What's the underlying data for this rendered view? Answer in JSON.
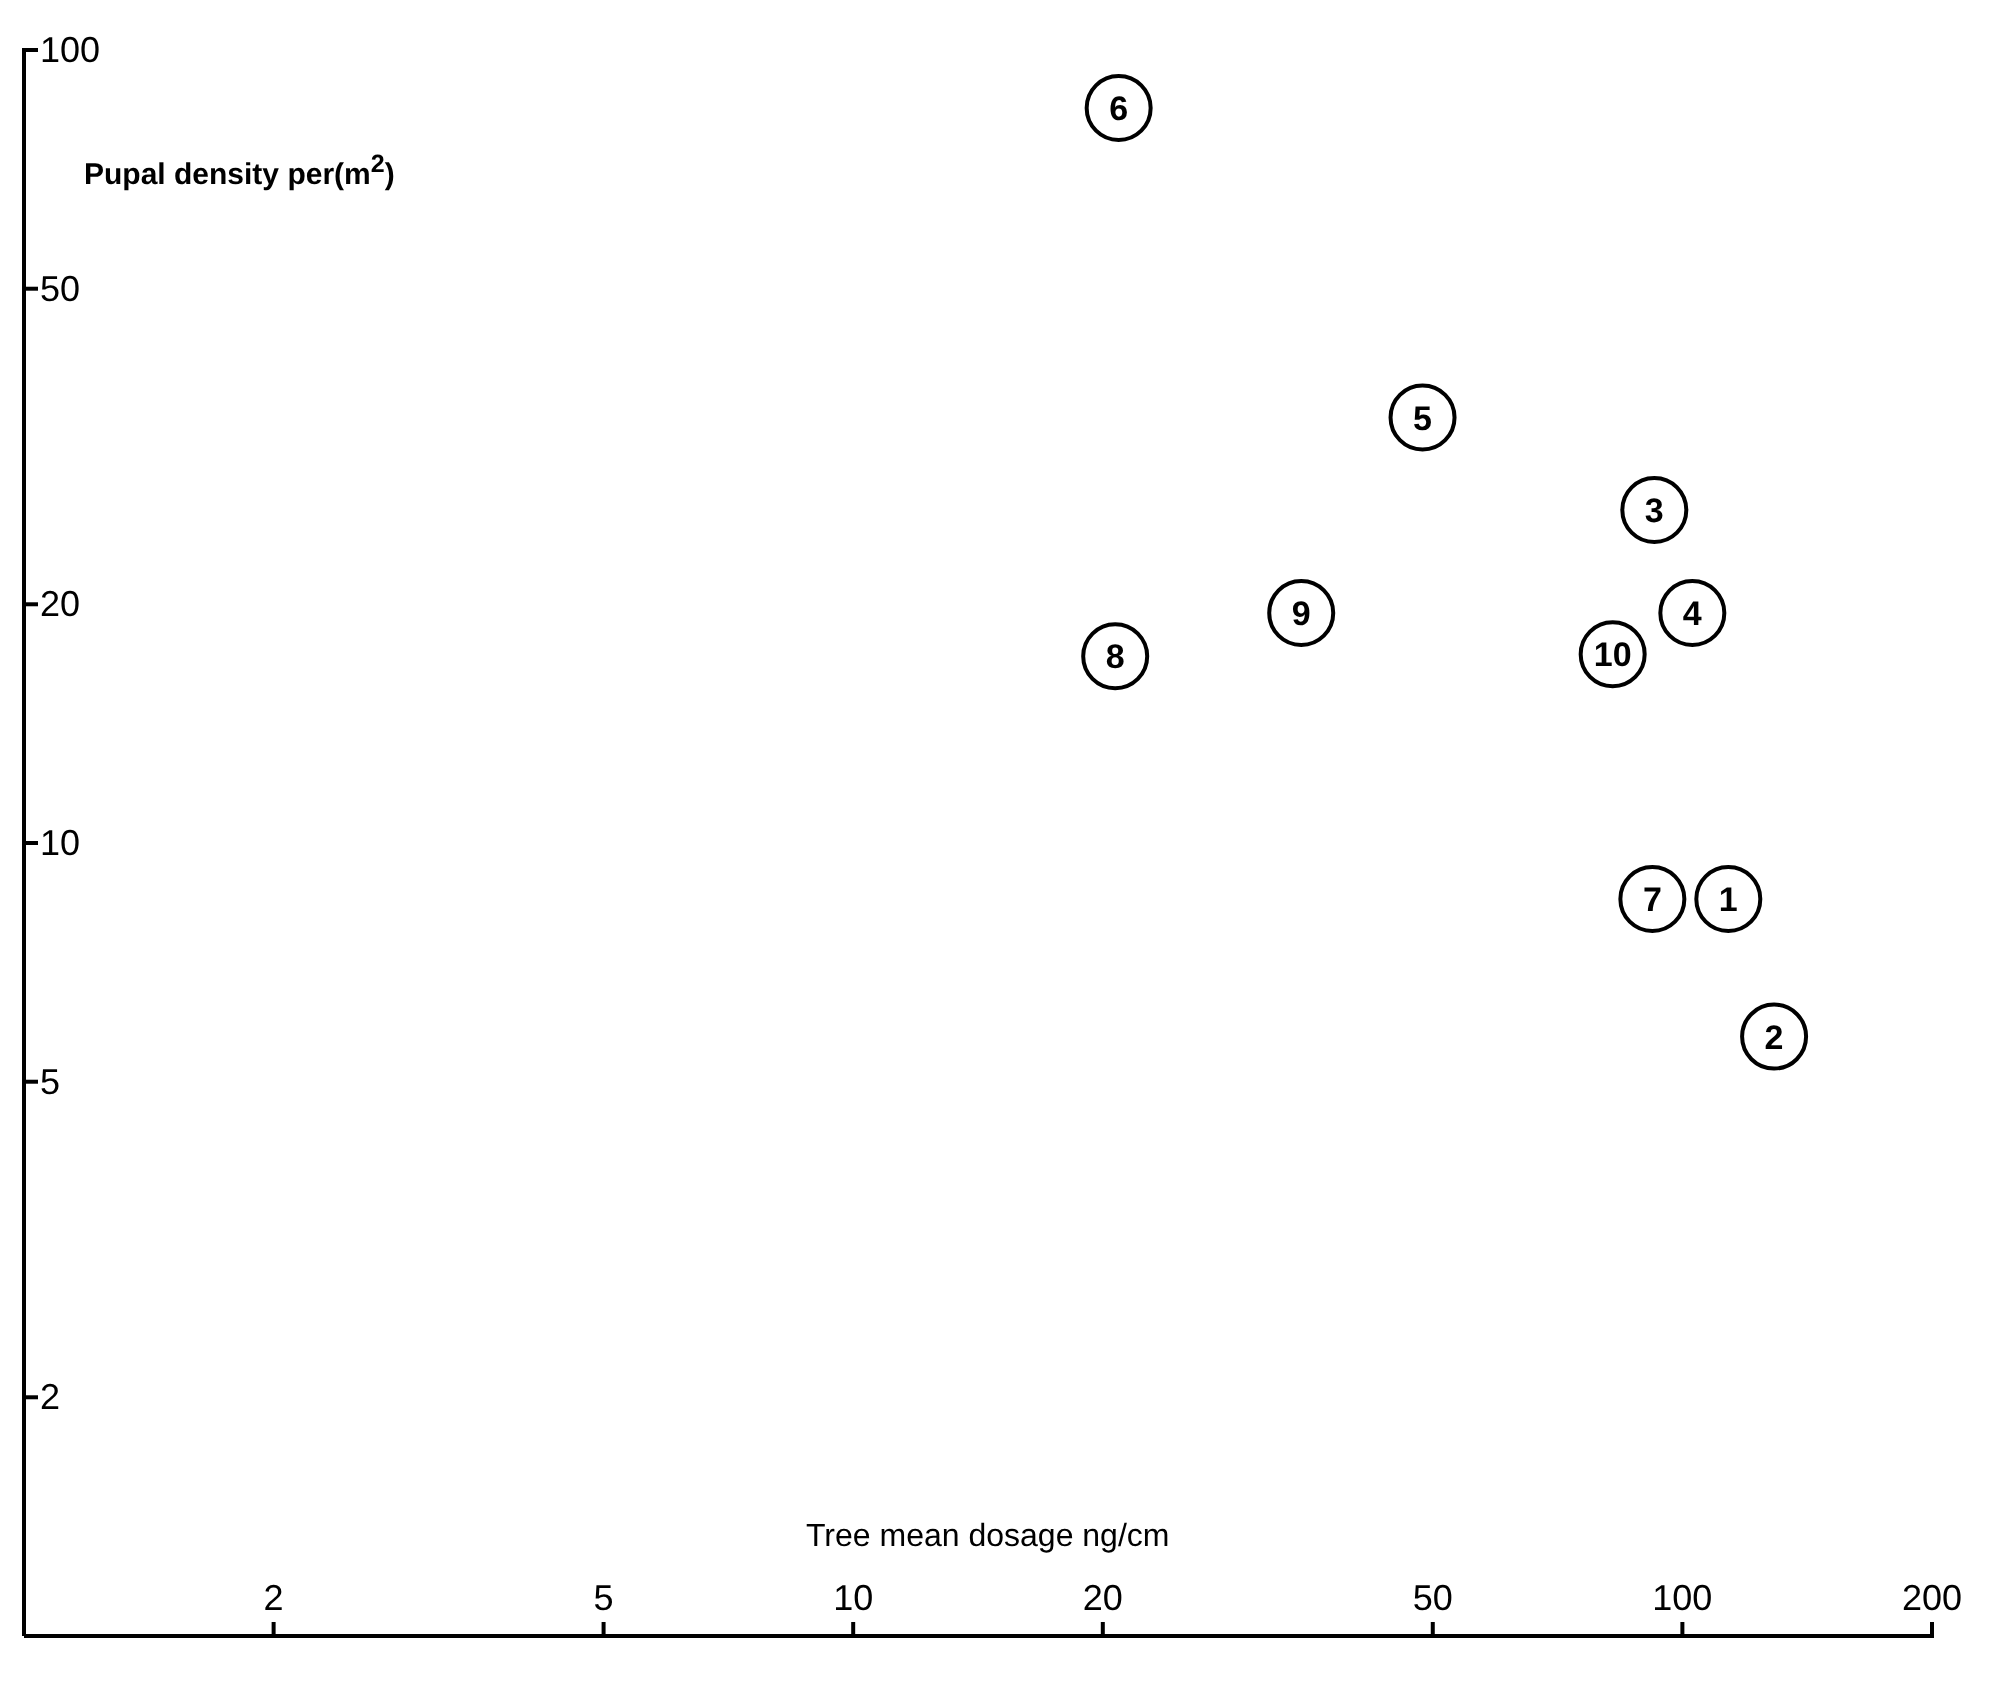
{
  "chart_data": {
    "type": "scatter",
    "xlabel": "Tree mean dosage ng/cm",
    "ylabel": "Pupal density per(m$^{2}$)",
    "x": [
      113.6,
      129,
      92.5,
      102.8,
      48.6,
      20.9,
      92,
      20.7,
      34.7,
      82.4
    ],
    "values": [
      8.5,
      5.7,
      26.3,
      19.5,
      34.4,
      84.5,
      8.5,
      17.2,
      19.5,
      17.3
    ],
    "color": "#000000",
    "marker": "circle",
    "log": "xy",
    "xlim": [
      1,
      200
    ],
    "xticks": [
      2,
      5,
      10,
      20,
      50,
      100,
      200
    ],
    "ylim": [
      1,
      100
    ],
    "yticks": [
      2,
      5,
      10,
      20,
      50,
      100
    ],
    "grid": false,
    "annotations": [
      {
        "text": "1",
        "x": 113.6,
        "y": 8.5
      },
      {
        "text": "2",
        "x": 129,
        "y": 5.7
      },
      {
        "text": "3",
        "x": 92.5,
        "y": 26.3
      },
      {
        "text": "4",
        "x": 102.8,
        "y": 19.5
      },
      {
        "text": "5",
        "x": 48.6,
        "y": 34.4
      },
      {
        "text": "6",
        "x": 20.9,
        "y": 84.5
      },
      {
        "text": "7",
        "x": 92,
        "y": 8.5
      },
      {
        "text": "8",
        "x": 20.7,
        "y": 17.2
      },
      {
        "text": "9",
        "x": 34.7,
        "y": 19.5
      },
      {
        "text": "10",
        "x": 82.4,
        "y": 17.3
      }
    ]
  }
}
